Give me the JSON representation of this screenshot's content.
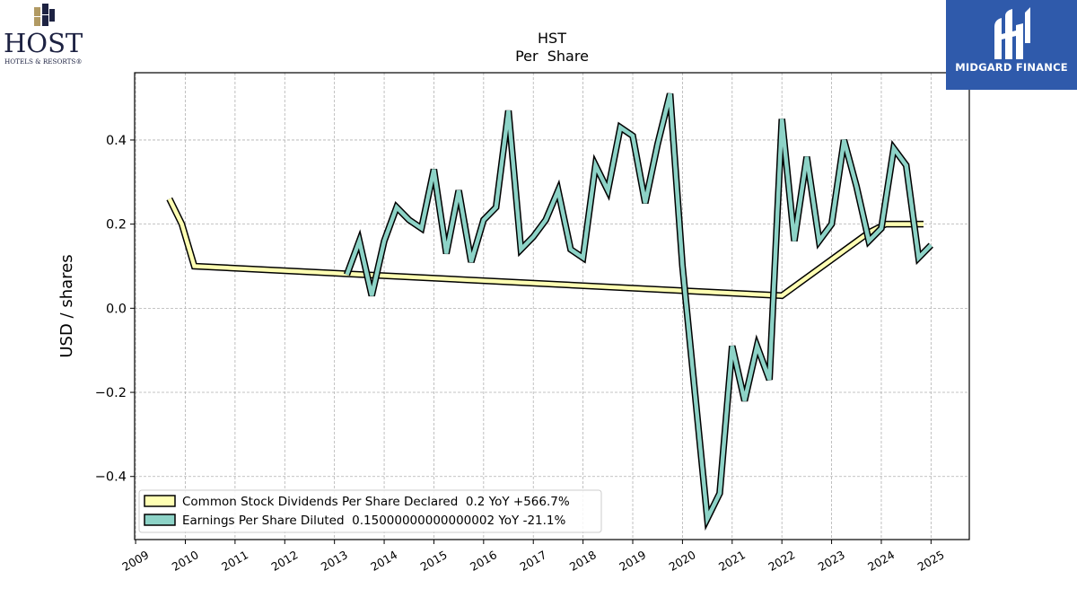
{
  "logos": {
    "left": {
      "word": "HOST",
      "subtitle": "HOTELS & RESORTS®"
    },
    "right": {
      "text": "MIDGARD FINANCE",
      "background": "#2f5aab"
    }
  },
  "chart_data": {
    "type": "line",
    "title": "HST",
    "subtitle": "Per  Share",
    "xlabel": "",
    "ylabel": "USD / shares",
    "xlim": [
      2008.98,
      2025.77
    ],
    "ylim": [
      -0.55,
      0.56
    ],
    "x_ticks": [
      2009,
      2010,
      2011,
      2012,
      2013,
      2014,
      2015,
      2016,
      2017,
      2018,
      2019,
      2020,
      2021,
      2022,
      2023,
      2024,
      2025
    ],
    "y_ticks": [
      -0.4,
      -0.2,
      0.0,
      0.2,
      0.4
    ],
    "y_tick_labels": [
      "−0.4",
      "−0.2",
      "0.0",
      "0.2",
      "0.4"
    ],
    "grid": true,
    "legend_position": "lower-left",
    "series": [
      {
        "name": "Common Stock Dividends Per Share Declared",
        "legend_label": "Common Stock Dividends Per Share Declared  0.2 YoY +566.7%",
        "color": "#ffffb3",
        "points": [
          [
            2009.68,
            0.26
          ],
          [
            2009.93,
            0.2
          ],
          [
            2010.18,
            0.1
          ],
          [
            2022.0,
            0.03
          ],
          [
            2023.75,
            0.18
          ],
          [
            2024.09,
            0.2
          ],
          [
            2024.85,
            0.2
          ]
        ]
      },
      {
        "name": "Earnings Per Share Diluted",
        "legend_label": "Earnings Per Share Diluted  0.15000000000000002 YoY -21.1%",
        "color": "#8dd3c7",
        "points": [
          [
            2013.25,
            0.08
          ],
          [
            2013.5,
            0.16
          ],
          [
            2013.75,
            0.03
          ],
          [
            2014.0,
            0.16
          ],
          [
            2014.25,
            0.24
          ],
          [
            2014.5,
            0.21
          ],
          [
            2014.75,
            0.19
          ],
          [
            2015.0,
            0.33
          ],
          [
            2015.25,
            0.13
          ],
          [
            2015.5,
            0.28
          ],
          [
            2015.75,
            0.11
          ],
          [
            2016.0,
            0.21
          ],
          [
            2016.25,
            0.24
          ],
          [
            2016.5,
            0.47
          ],
          [
            2016.75,
            0.14
          ],
          [
            2017.0,
            0.17
          ],
          [
            2017.25,
            0.21
          ],
          [
            2017.5,
            0.28
          ],
          [
            2017.75,
            0.14
          ],
          [
            2018.0,
            0.12
          ],
          [
            2018.25,
            0.34
          ],
          [
            2018.5,
            0.28
          ],
          [
            2018.75,
            0.43
          ],
          [
            2019.0,
            0.41
          ],
          [
            2019.25,
            0.25
          ],
          [
            2019.5,
            0.39
          ],
          [
            2019.75,
            0.51
          ],
          [
            2020.0,
            0.1
          ],
          [
            2020.5,
            -0.5
          ],
          [
            2020.75,
            -0.44
          ],
          [
            2021.0,
            -0.09
          ],
          [
            2021.25,
            -0.22
          ],
          [
            2021.5,
            -0.09
          ],
          [
            2021.75,
            -0.17
          ],
          [
            2022.0,
            0.45
          ],
          [
            2022.25,
            0.16
          ],
          [
            2022.5,
            0.36
          ],
          [
            2022.75,
            0.16
          ],
          [
            2023.0,
            0.2
          ],
          [
            2023.25,
            0.4
          ],
          [
            2023.5,
            0.29
          ],
          [
            2023.75,
            0.16
          ],
          [
            2024.0,
            0.19
          ],
          [
            2024.25,
            0.38
          ],
          [
            2024.5,
            0.34
          ],
          [
            2024.75,
            0.12
          ],
          [
            2025.0,
            0.15
          ]
        ]
      }
    ]
  }
}
